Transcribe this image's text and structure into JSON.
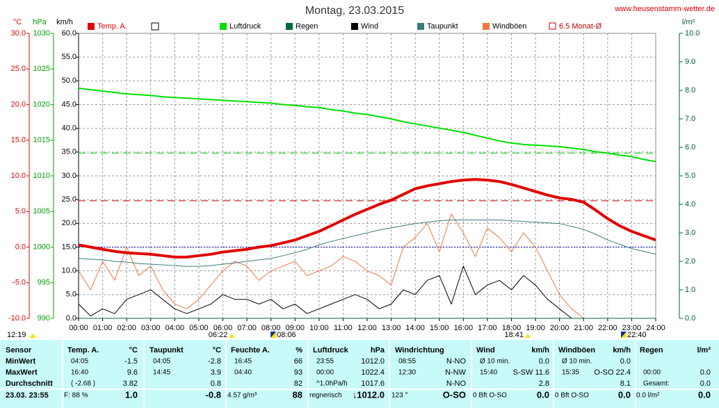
{
  "chart_data": {
    "type": "line",
    "title": "Montag, 23.03.2015",
    "source": "www.heusenstamm-wetter.de",
    "xlim": [
      0,
      24
    ],
    "xticks": [
      {
        "value": 0,
        "label": "00:00"
      },
      {
        "value": 1,
        "label": "01:00"
      },
      {
        "value": 2,
        "label": "02:00"
      },
      {
        "value": 3,
        "label": "03:00"
      },
      {
        "value": 4,
        "label": "04:00"
      },
      {
        "value": 5,
        "label": "05:00"
      },
      {
        "value": 6,
        "label": "06:00"
      },
      {
        "value": 7,
        "label": "07:00"
      },
      {
        "value": 8,
        "label": "08:00"
      },
      {
        "value": 9,
        "label": "09:00"
      },
      {
        "value": 10,
        "label": "10:00"
      },
      {
        "value": 11,
        "label": "11:00"
      },
      {
        "value": 12,
        "label": "12:00"
      },
      {
        "value": 13,
        "label": "13:00"
      },
      {
        "value": 14,
        "label": "14:00"
      },
      {
        "value": 15,
        "label": "15:00"
      },
      {
        "value": 16,
        "label": "16:00"
      },
      {
        "value": 17,
        "label": "17:00"
      },
      {
        "value": 18,
        "label": "18:00"
      },
      {
        "value": 19,
        "label": "19:00"
      },
      {
        "value": 20,
        "label": "20:00"
      },
      {
        "value": 21,
        "label": "21:00"
      },
      {
        "value": 22,
        "label": "22:00"
      },
      {
        "value": 23,
        "label": "23:00"
      },
      {
        "value": 24,
        "label": "24:00"
      }
    ],
    "grid": true,
    "axes": {
      "temp": {
        "unit": "°C",
        "color": "#e00000",
        "lim": [
          -10,
          30
        ],
        "ticks": [
          {
            "value": 30,
            "label": "30.0"
          },
          {
            "value": 25,
            "label": "25.0"
          },
          {
            "value": 20,
            "label": "20.0"
          },
          {
            "value": 15,
            "label": "15.0"
          },
          {
            "value": 10,
            "label": "10.0"
          },
          {
            "value": 5,
            "label": "5.0"
          },
          {
            "value": 0,
            "label": "0.0"
          },
          {
            "value": -5,
            "label": "-5.0"
          },
          {
            "value": -10,
            "label": "-10.0"
          }
        ]
      },
      "pressure": {
        "unit": "hPa",
        "color": "#00a000",
        "lim": [
          990,
          1030
        ],
        "ticks": [
          1030,
          1025,
          1020,
          1015,
          1010,
          1005,
          1000,
          995,
          990
        ]
      },
      "speed": {
        "unit": "km/h",
        "color": "#000000",
        "lim": [
          0,
          60
        ],
        "ticks": [
          {
            "value": 60,
            "label": "60.0"
          },
          {
            "value": 55,
            "label": "55.0"
          },
          {
            "value": 50,
            "label": "50.0"
          },
          {
            "value": 45,
            "label": "45.0"
          },
          {
            "value": 40,
            "label": "40.0"
          },
          {
            "value": 35,
            "label": "35.0"
          },
          {
            "value": 30,
            "label": "30.0"
          },
          {
            "value": 25,
            "label": "25.0"
          },
          {
            "value": 20,
            "label": "20.0"
          },
          {
            "value": 15,
            "label": "15.0"
          },
          {
            "value": 10,
            "label": "10.0"
          },
          {
            "value": 5,
            "label": "5.0"
          },
          {
            "value": 0,
            "label": "0.0"
          }
        ]
      },
      "rain": {
        "unit": "l/m²",
        "color": "#006030",
        "lim": [
          0,
          10
        ],
        "ticks": [
          {
            "value": 10,
            "label": "10.0"
          },
          {
            "value": 9,
            "label": "9.0"
          },
          {
            "value": 8,
            "label": "8.0"
          },
          {
            "value": 7,
            "label": "7.0"
          },
          {
            "value": 6,
            "label": "6.0"
          },
          {
            "value": 5,
            "label": "5.0"
          },
          {
            "value": 4,
            "label": "4.0"
          },
          {
            "value": 3,
            "label": "3.0"
          },
          {
            "value": 2,
            "label": "2.0"
          },
          {
            "value": 1,
            "label": "1.0"
          },
          {
            "value": 0,
            "label": "0.0"
          }
        ]
      }
    },
    "x": [
      0,
      0.5,
      1,
      1.5,
      2,
      2.5,
      3,
      3.5,
      4,
      4.5,
      5,
      5.5,
      6,
      6.5,
      7,
      7.5,
      8,
      8.5,
      9,
      9.5,
      10,
      10.5,
      11,
      11.5,
      12,
      12.5,
      13,
      13.5,
      14,
      14.5,
      15,
      15.5,
      16,
      16.5,
      17,
      17.5,
      18,
      18.5,
      19,
      19.5,
      20,
      20.5,
      21,
      21.5,
      22,
      22.5,
      23,
      23.5,
      24
    ],
    "series": [
      {
        "name": "Temp. A.",
        "color": "#e00000",
        "axis": "temp",
        "width": 4,
        "values": [
          0.3,
          0.0,
          -0.3,
          -0.6,
          -0.8,
          -0.9,
          -1.0,
          -1.2,
          -1.4,
          -1.4,
          -1.2,
          -1.0,
          -0.7,
          -0.5,
          -0.3,
          0.0,
          0.2,
          0.6,
          1.0,
          1.6,
          2.2,
          3.0,
          3.8,
          4.6,
          5.3,
          6.0,
          6.6,
          7.4,
          8.2,
          8.6,
          8.9,
          9.2,
          9.4,
          9.5,
          9.4,
          9.2,
          8.8,
          8.3,
          7.8,
          7.3,
          6.9,
          6.7,
          6.3,
          5.2,
          4.0,
          3.0,
          2.2,
          1.6,
          1.0
        ]
      },
      {
        "name": "Luftdruck",
        "color": "#00e000",
        "axis": "pressure",
        "width": 2,
        "values": [
          1022.3,
          1022.1,
          1021.9,
          1021.7,
          1021.5,
          1021.4,
          1021.3,
          1021.1,
          1021.0,
          1020.9,
          1020.8,
          1020.7,
          1020.6,
          1020.5,
          1020.4,
          1020.3,
          1020.2,
          1020.0,
          1019.9,
          1019.7,
          1019.6,
          1019.3,
          1019.1,
          1018.8,
          1018.6,
          1018.3,
          1018.0,
          1017.6,
          1017.3,
          1017.0,
          1016.7,
          1016.4,
          1016.1,
          1015.7,
          1015.3,
          1014.9,
          1014.6,
          1014.4,
          1014.3,
          1014.2,
          1014.1,
          1013.9,
          1013.7,
          1013.4,
          1013.2,
          1012.9,
          1012.7,
          1012.3,
          1012.0
        ]
      },
      {
        "name": "Regen",
        "color": "#006a3a",
        "axis": "rain",
        "width": 1,
        "values": [
          0,
          0,
          0,
          0,
          0,
          0,
          0,
          0,
          0,
          0,
          0,
          0,
          0,
          0,
          0,
          0,
          0,
          0,
          0,
          0,
          0,
          0,
          0,
          0,
          0,
          0,
          0,
          0,
          0,
          0,
          0,
          0,
          0,
          0,
          0,
          0,
          0,
          0,
          0,
          0,
          0,
          0,
          0,
          0,
          0,
          0,
          0,
          0,
          0
        ]
      },
      {
        "name": "Wind",
        "color": "#000000",
        "axis": "speed",
        "width": 1,
        "values": [
          3,
          0.5,
          2,
          1,
          4,
          5,
          6,
          4,
          2,
          1,
          2,
          3,
          5,
          4,
          4,
          3,
          4,
          2,
          3,
          1,
          2,
          3,
          4,
          5,
          4,
          2,
          3,
          6,
          5,
          8,
          9,
          3,
          11,
          5,
          7,
          8,
          6,
          9,
          7,
          4,
          2,
          0,
          0,
          0,
          0,
          0,
          0,
          0,
          0
        ]
      },
      {
        "name": "Taupunkt",
        "color": "#3a7a7a",
        "axis": "temp",
        "width": 1,
        "values": [
          -1.6,
          -1.7,
          -1.8,
          -2.0,
          -2.1,
          -2.3,
          -2.4,
          -2.5,
          -2.6,
          -2.7,
          -2.7,
          -2.6,
          -2.4,
          -2.2,
          -2.0,
          -1.8,
          -1.6,
          -1.2,
          -0.8,
          -0.3,
          0.3,
          0.8,
          1.2,
          1.6,
          2.0,
          2.4,
          2.7,
          3.0,
          3.3,
          3.5,
          3.7,
          3.8,
          3.8,
          3.8,
          3.8,
          3.8,
          3.7,
          3.6,
          3.5,
          3.4,
          3.3,
          2.9,
          2.5,
          1.8,
          1.0,
          0.4,
          -0.2,
          -0.6,
          -1.0
        ]
      },
      {
        "name": "Windböen",
        "color": "#f07840",
        "axis": "speed",
        "width": 1,
        "values": [
          10,
          6,
          12,
          8,
          15,
          9,
          11,
          6,
          3,
          2,
          4,
          7,
          10,
          12,
          11,
          8,
          10,
          11,
          12,
          9,
          10,
          11,
          13,
          12,
          10,
          9,
          7,
          15,
          17,
          20,
          14,
          22,
          18,
          13,
          19,
          17,
          14,
          18,
          15,
          10,
          5,
          2,
          0,
          0,
          0,
          0,
          0,
          0,
          0
        ]
      }
    ],
    "reference_lines": [
      {
        "name": "6.5 Monat-Ø",
        "value": 6.5,
        "axis": "temp",
        "color": "#c00000",
        "dash": "10,6"
      },
      {
        "value": 1013.2,
        "axis": "pressure",
        "color": "#00d000",
        "dash": "10,6"
      },
      {
        "value": 0,
        "axis": "temp",
        "color": "#0000c0",
        "dash": "2,2"
      }
    ],
    "time_markers": [
      {
        "label": "12:19",
        "hour": 0,
        "kind": "sun"
      },
      {
        "label": "06:22",
        "hour": 6.37,
        "kind": "sun"
      },
      {
        "label": "08:06",
        "hour": 8.1,
        "kind": "moon"
      },
      {
        "label": "18:41",
        "hour": 18.68,
        "kind": "sun"
      },
      {
        "label": "22:40",
        "hour": 22.67,
        "kind": "moon"
      }
    ]
  },
  "table": {
    "row_labels": [
      "Sensor",
      "MinWert",
      "MaxWert",
      "Durchschnitt",
      "23.03.  23:55"
    ],
    "columns": [
      {
        "header": "Temp. A.",
        "unit": "°C",
        "cells": [
          [
            "04:05",
            "-1.5"
          ],
          [
            "16:40",
            "9.6"
          ],
          [
            "( -2.68 )",
            "3.82"
          ],
          [
            "F: 88 %",
            "1.0"
          ]
        ]
      },
      {
        "header": "Taupunkt",
        "unit": "°C",
        "cells": [
          [
            "04:05",
            "-2.8"
          ],
          [
            "14:45",
            "3.9"
          ],
          [
            null,
            "0.8"
          ],
          [
            null,
            "-0.8"
          ]
        ]
      },
      {
        "header": "Feuchte A.",
        "unit": "%",
        "cells": [
          [
            "16:45",
            "66"
          ],
          [
            "04:40",
            "93"
          ],
          [
            null,
            "82"
          ],
          [
            "4.57 g/m³",
            "88"
          ]
        ]
      },
      {
        "header": "Luftdruck",
        "unit": "hPa",
        "cells": [
          [
            "23:55",
            "1012.0"
          ],
          [
            "00:00",
            "1022.4"
          ],
          [
            "^1.0hPa/h",
            "1017.6"
          ],
          [
            "regnerisch",
            "↓1012.0"
          ]
        ]
      },
      {
        "header": "Windrichtung",
        "unit": null,
        "cells": [
          [
            "08:55",
            "N-NO"
          ],
          [
            "12:30",
            "N-NW"
          ],
          [
            null,
            "N-NO"
          ],
          [
            "123 °",
            "O-SO"
          ]
        ]
      },
      {
        "header": "Wind",
        "unit": "km/h",
        "cells": [
          [
            "Ø 10 min.",
            "0.0"
          ],
          [
            "15:40",
            "S-SW 11.6"
          ],
          [
            null,
            "2.8"
          ],
          [
            "0 Bft O-SO",
            "0.0"
          ]
        ]
      },
      {
        "header": "Windböen",
        "unit": "km/h",
        "cells": [
          [
            "Ø 10 min.",
            "0.0"
          ],
          [
            "15:35",
            "O-SO 22.4"
          ],
          [
            null,
            "8.1"
          ],
          [
            "0 Bft O-SO",
            "0.0"
          ]
        ]
      },
      {
        "header": "Regen",
        "unit": "l/m²",
        "cells": [
          [
            null,
            null
          ],
          [
            "00:00",
            "0.0"
          ],
          [
            "Gesamt:",
            "0.0"
          ],
          [
            "0.0 l/m²",
            "0.0"
          ]
        ]
      }
    ]
  }
}
